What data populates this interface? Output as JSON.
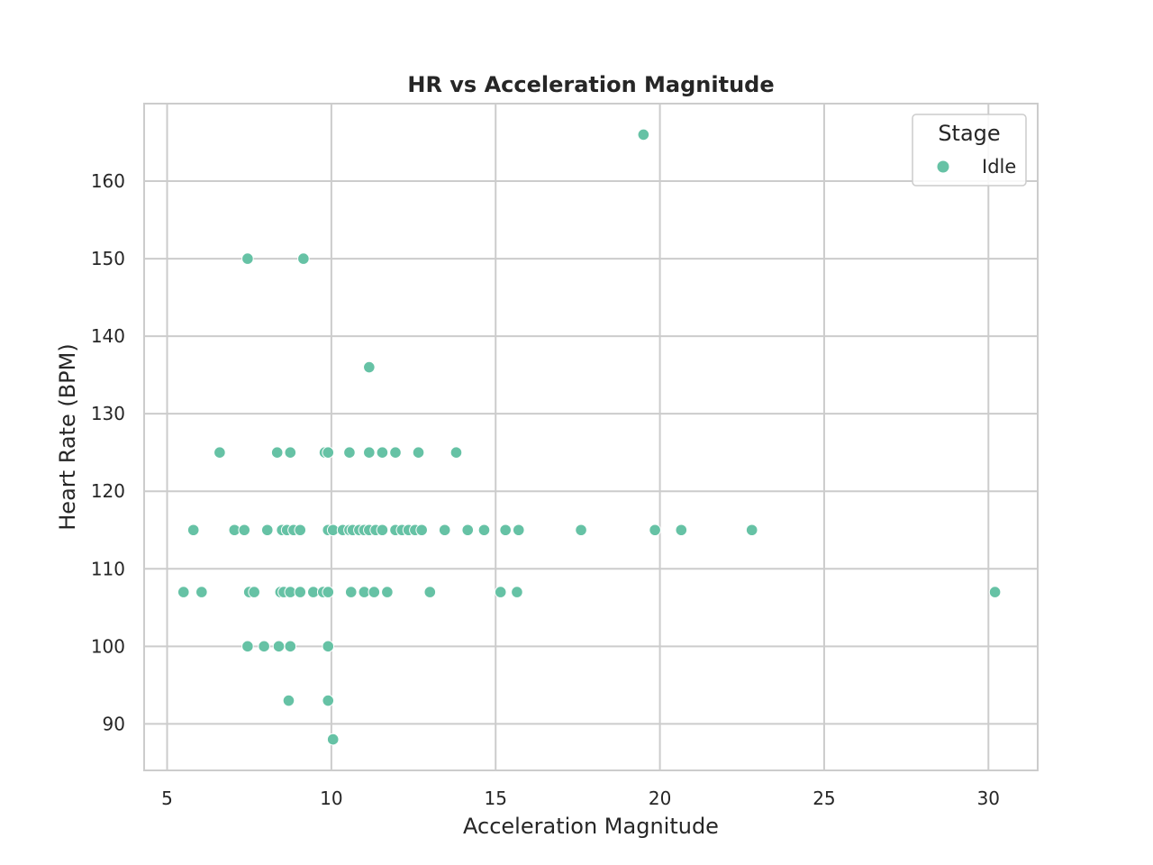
{
  "chart_data": {
    "type": "scatter",
    "title": "HR vs Acceleration Magnitude",
    "xlabel": "Acceleration Magnitude",
    "ylabel": "Heart Rate (BPM)",
    "xlim": [
      4.3,
      31.5
    ],
    "ylim": [
      84,
      170
    ],
    "xticks": [
      5,
      10,
      15,
      20,
      25,
      30
    ],
    "yticks": [
      90,
      100,
      110,
      120,
      130,
      140,
      150,
      160
    ],
    "grid": true,
    "legend": {
      "title": "Stage",
      "position": "top-right"
    },
    "colors": {
      "point": "#66c2a5",
      "grid": "#cccccc",
      "axes": "#cccccc",
      "text": "#262626"
    },
    "series": [
      {
        "name": "Idle",
        "points": [
          [
            19.5,
            166
          ],
          [
            7.45,
            150
          ],
          [
            9.15,
            150
          ],
          [
            11.15,
            136
          ],
          [
            6.6,
            125
          ],
          [
            8.35,
            125
          ],
          [
            8.75,
            125
          ],
          [
            9.8,
            125
          ],
          [
            9.9,
            125
          ],
          [
            10.55,
            125
          ],
          [
            11.15,
            125
          ],
          [
            11.55,
            125
          ],
          [
            11.95,
            125
          ],
          [
            12.65,
            125
          ],
          [
            13.8,
            125
          ],
          [
            5.8,
            115
          ],
          [
            7.05,
            115
          ],
          [
            7.35,
            115
          ],
          [
            8.05,
            115
          ],
          [
            8.5,
            115
          ],
          [
            8.65,
            115
          ],
          [
            8.85,
            115
          ],
          [
            9.05,
            115
          ],
          [
            9.9,
            115
          ],
          [
            10.05,
            115
          ],
          [
            10.35,
            115
          ],
          [
            10.55,
            115
          ],
          [
            10.65,
            115
          ],
          [
            10.85,
            115
          ],
          [
            11.0,
            115
          ],
          [
            11.15,
            115
          ],
          [
            11.35,
            115
          ],
          [
            11.55,
            115
          ],
          [
            11.95,
            115
          ],
          [
            12.15,
            115
          ],
          [
            12.35,
            115
          ],
          [
            12.55,
            115
          ],
          [
            12.75,
            115
          ],
          [
            13.45,
            115
          ],
          [
            14.15,
            115
          ],
          [
            14.65,
            115
          ],
          [
            15.3,
            115
          ],
          [
            15.7,
            115
          ],
          [
            17.6,
            115
          ],
          [
            19.85,
            115
          ],
          [
            20.65,
            115
          ],
          [
            22.8,
            115
          ],
          [
            5.5,
            107
          ],
          [
            6.05,
            107
          ],
          [
            7.5,
            107
          ],
          [
            7.65,
            107
          ],
          [
            8.45,
            107
          ],
          [
            8.55,
            107
          ],
          [
            8.75,
            107
          ],
          [
            9.05,
            107
          ],
          [
            9.45,
            107
          ],
          [
            9.75,
            107
          ],
          [
            9.9,
            107
          ],
          [
            10.6,
            107
          ],
          [
            11.0,
            107
          ],
          [
            11.3,
            107
          ],
          [
            11.7,
            107
          ],
          [
            13.0,
            107
          ],
          [
            15.15,
            107
          ],
          [
            15.65,
            107
          ],
          [
            30.2,
            107
          ],
          [
            7.45,
            100
          ],
          [
            7.95,
            100
          ],
          [
            8.4,
            100
          ],
          [
            8.75,
            100
          ],
          [
            9.9,
            100
          ],
          [
            8.7,
            93
          ],
          [
            9.9,
            93
          ],
          [
            10.05,
            88
          ]
        ]
      }
    ]
  }
}
